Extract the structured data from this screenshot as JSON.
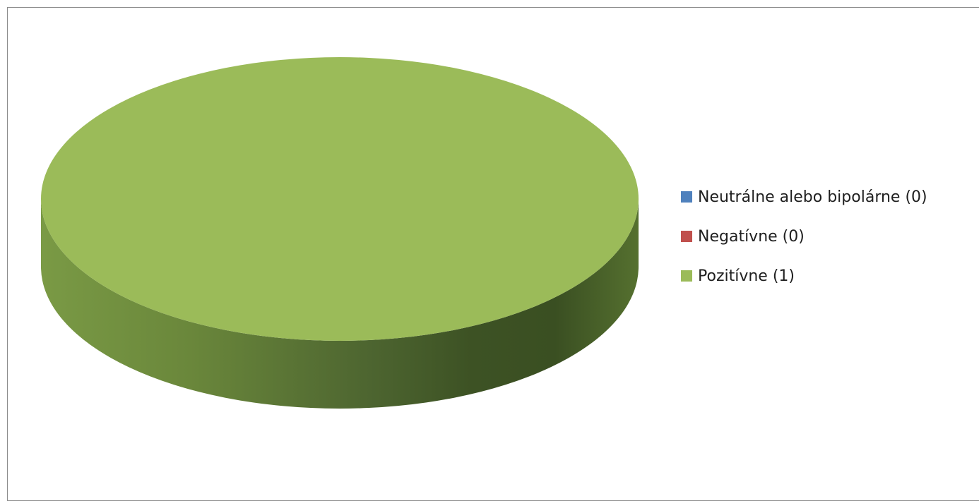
{
  "chart_data": {
    "type": "pie",
    "title": "",
    "style": "3d",
    "legend_position": "right",
    "categories": [
      "Neutrálne alebo bipolárne (0)",
      "Negatívne (0)",
      "Pozitívne (1)"
    ],
    "values": [
      0,
      0,
      1
    ],
    "colors": [
      "#4F81BD",
      "#C0504D",
      "#9BBB59"
    ]
  }
}
